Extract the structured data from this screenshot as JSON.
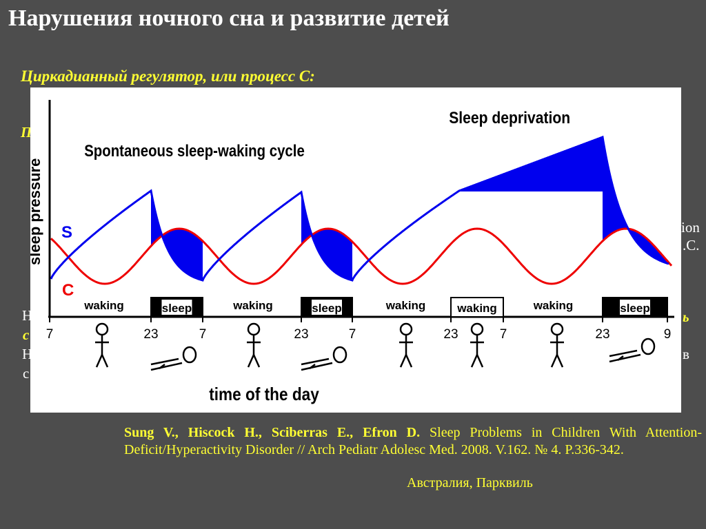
{
  "slide": {
    "title": "Нарушения ночного сна и развитие детей",
    "subtitle": "Циркадианный регулятор, или процесс С:",
    "peek_texts": [
      "П",
      "Н",
      "с",
      "Н",
      "с",
      "ion",
      ".С.",
      "ь",
      "в"
    ],
    "citation": {
      "authors": "Sung V., Hiscock H., Sciberras E., Efron D.",
      "text": "Sleep Problems in Children With Attention-Deficit/Hyperactivity Disorder // Arch Pediatr Adolesc Med. 2008. V.162. № 4. P.336-342."
    },
    "location": "Австралия, Парквиль"
  },
  "chart_data": {
    "type": "line",
    "title": "",
    "panel_labels": [
      "Spontaneous sleep-waking cycle",
      "Sleep deprivation"
    ],
    "ylabel": "sleep pressure",
    "xlabel": "time of the day",
    "x_ticks": [
      "7",
      "23",
      "7",
      "23",
      "7",
      "23",
      "7",
      "23",
      "9"
    ],
    "series": [
      {
        "name": "S",
        "color": "#0000ee"
      },
      {
        "name": "C",
        "color": "#ee0000"
      }
    ],
    "states": [
      {
        "label": "waking",
        "boxed": false,
        "filled": false
      },
      {
        "label": "sleep",
        "boxed": true,
        "filled": true
      },
      {
        "label": "waking",
        "boxed": false,
        "filled": false
      },
      {
        "label": "sleep",
        "boxed": true,
        "filled": true
      },
      {
        "label": "waking",
        "boxed": false,
        "filled": false
      },
      {
        "label": "waking",
        "boxed": true,
        "filled": false
      },
      {
        "label": "waking",
        "boxed": false,
        "filled": false
      },
      {
        "label": "sleep",
        "boxed": true,
        "filled": true
      }
    ],
    "fill_color": "#0000ee"
  }
}
